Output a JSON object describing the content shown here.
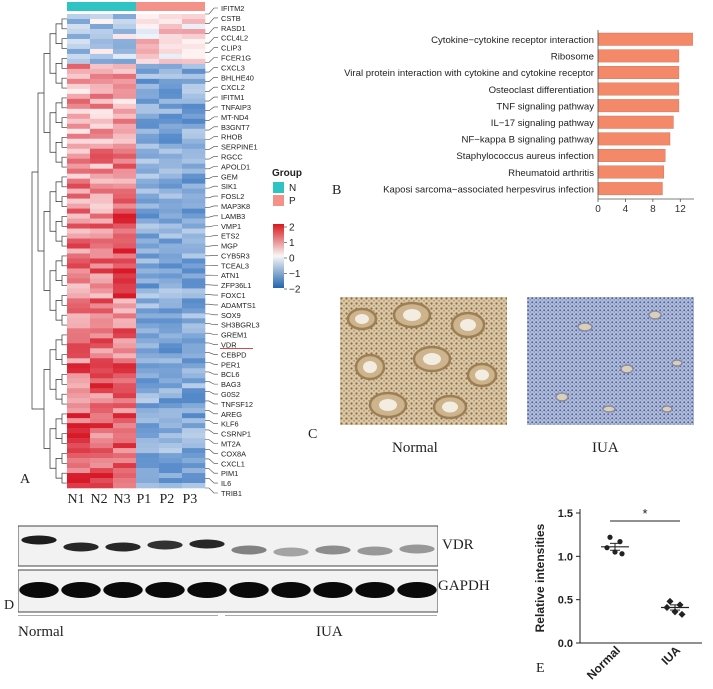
{
  "panel_labels": {
    "a": "A",
    "b": "B",
    "c": "C",
    "d": "D",
    "e": "E"
  },
  "heatmap": {
    "groups_title": "Group",
    "groups": [
      {
        "key": "N",
        "color": "#2ec4c4"
      },
      {
        "key": "P",
        "color": "#f4928a"
      }
    ],
    "samples": [
      "N1",
      "N2",
      "N3",
      "P1",
      "P2",
      "P3"
    ],
    "scale_ticks": [
      "2",
      "1",
      "0",
      "−1",
      "−2"
    ],
    "genes": [
      "IFITM2",
      "CSTB",
      "RASD1",
      "CCL4L2",
      "CLIP3",
      "FCER1G",
      "CXCL3",
      "BHLHE40",
      "CXCL2",
      "IFITM1",
      "TNFAIP3",
      "MT-ND4",
      "B3GNT7",
      "RHOB",
      "SERPINE1",
      "RGCC",
      "APOLD1",
      "GEM",
      "SIK1",
      "FOSL2",
      "MAP3K8",
      "LAMB3",
      "VMP1",
      "ETS2",
      "MGP",
      "CYB5R3",
      "TCEAL3",
      "ATN1",
      "ZFP36L1",
      "FOXC1",
      "ADAMTS1",
      "SOX9",
      "SH3BGRL3",
      "GREM1",
      "VDR",
      "CEBPD",
      "PER1",
      "BCL6",
      "BAG3",
      "G0S2",
      "TNFSF12",
      "AREG",
      "KLF6",
      "CSRNP1",
      "MT2A",
      "COX8A",
      "CXCL1",
      "PIM1",
      "IL6",
      "TRIB1"
    ]
  },
  "chart_data": [
    {
      "type": "bar",
      "orientation": "horizontal",
      "categories": [
        "Cytokine−cytokine receptor interaction",
        "Ribosome",
        "Viral protein interaction with cytokine and cytokine receptor",
        "Osteoclast differentiation",
        "TNF signaling pathway",
        "IL−17 signaling pathway",
        "NF−kappa B signaling pathway",
        "Staphylococcus aureus infection",
        "Rheumatoid arthritis",
        "Kaposi sarcoma−associated herpesvirus infection"
      ],
      "values": [
        13.8,
        11.8,
        11.8,
        11.8,
        11.8,
        11,
        10.5,
        9.8,
        9.6,
        9.4
      ],
      "xticks": [
        "0",
        "4",
        "8",
        "12"
      ],
      "xlim": [
        0,
        14
      ],
      "bar_color": "#f4896a"
    },
    {
      "type": "scatter",
      "categories": [
        "Normal",
        "IUA"
      ],
      "points": {
        "Normal": [
          1.22,
          1.17,
          1.1,
          1.05,
          1.03
        ],
        "IUA": [
          0.48,
          0.44,
          0.41,
          0.36,
          0.33
        ]
      },
      "means": [
        1.11,
        0.41
      ],
      "sem": [
        0.04,
        0.03
      ],
      "ylabel": "Relative intensities",
      "yticks": [
        "0.0",
        "0.5",
        "1.0",
        "1.5"
      ],
      "ylim": [
        0,
        1.5
      ],
      "significance": "*"
    }
  ],
  "ihc": {
    "normal_label": "Normal",
    "iua_label": "IUA"
  },
  "western": {
    "bands": [
      "VDR",
      "GAPDH"
    ],
    "groups": [
      "Normal",
      "IUA"
    ]
  }
}
